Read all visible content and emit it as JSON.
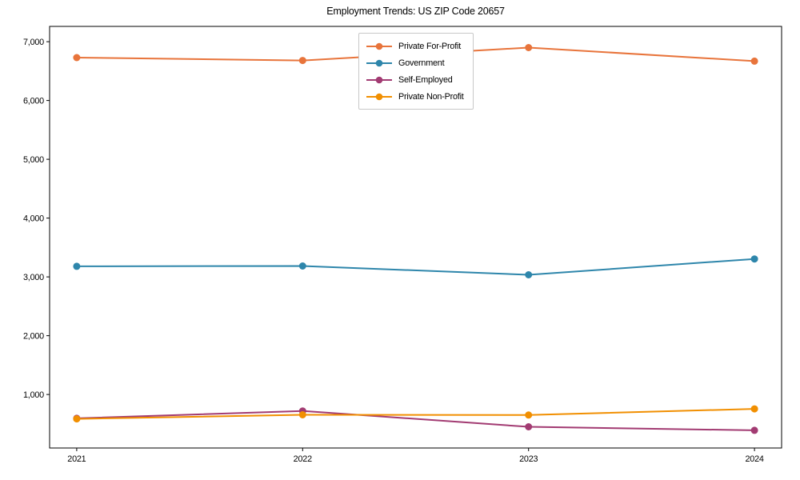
{
  "title": "Employment Trends: US ZIP Code 20657",
  "chart_data": {
    "type": "line",
    "title": "Employment Trends: US ZIP Code 20657",
    "xlabel": "",
    "ylabel": "",
    "x": [
      2021,
      2022,
      2023,
      2024
    ],
    "xtick_labels": [
      "2021",
      "2022",
      "2023",
      "2024"
    ],
    "ytick_values": [
      1000,
      2000,
      3000,
      4000,
      5000,
      6000,
      7000
    ],
    "ytick_labels": [
      "1,000",
      "2,000",
      "3,000",
      "4,000",
      "5,000",
      "6,000",
      "7,000"
    ],
    "xlim": [
      2020.88,
      2024.12
    ],
    "ylim": [
      90,
      7260
    ],
    "grid": false,
    "legend_position": "upper center",
    "series": [
      {
        "name": "Private For-Profit",
        "color": "#E8743B",
        "values": [
          6730,
          6680,
          6900,
          6670
        ]
      },
      {
        "name": "Government",
        "color": "#2E86AB",
        "values": [
          3180,
          3185,
          3035,
          3305
        ]
      },
      {
        "name": "Self-Employed",
        "color": "#A23B72",
        "values": [
          595,
          720,
          450,
          390
        ]
      },
      {
        "name": "Private Non-Profit",
        "color": "#F18F01",
        "values": [
          585,
          655,
          650,
          755
        ]
      }
    ]
  }
}
